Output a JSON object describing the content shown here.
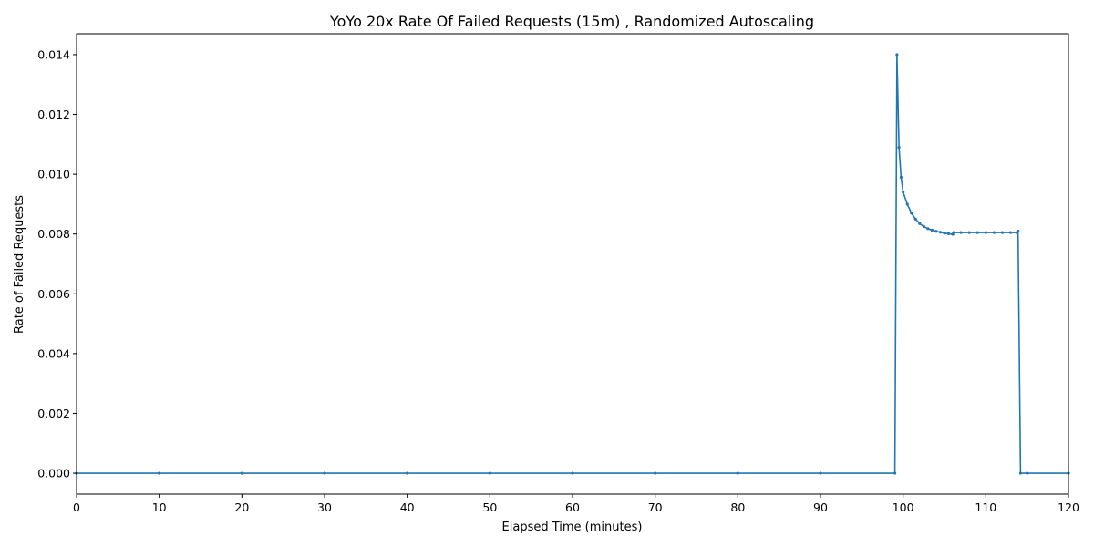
{
  "chart_data": {
    "type": "line",
    "title": "YoYo 20x Rate Of Failed Requests (15m) , Randomized Autoscaling",
    "xlabel": "Elapsed Time (minutes)",
    "ylabel": "Rate of Failed Requests",
    "xlim": [
      0,
      120
    ],
    "ylim": [
      -0.0007,
      0.0147
    ],
    "x_ticks": [
      0,
      10,
      20,
      30,
      40,
      50,
      60,
      70,
      80,
      90,
      100,
      110,
      120
    ],
    "y_ticks": [
      0.0,
      0.002,
      0.004,
      0.006,
      0.008,
      0.01,
      0.012,
      0.014
    ],
    "x_tick_labels": [
      "0",
      "10",
      "20",
      "30",
      "40",
      "50",
      "60",
      "70",
      "80",
      "90",
      "100",
      "110",
      "120"
    ],
    "y_tick_labels": [
      "0.000",
      "0.002",
      "0.004",
      "0.006",
      "0.008",
      "0.010",
      "0.012",
      "0.014"
    ],
    "grid": false,
    "series": [
      {
        "color": "#1f77b4",
        "marker": "dot",
        "x": [
          0,
          10,
          20,
          30,
          40,
          50,
          60,
          70,
          80,
          90,
          99.0,
          99.25,
          99.5,
          99.75,
          100.0,
          100.5,
          101.0,
          101.5,
          102.0,
          102.5,
          103.0,
          103.5,
          104.0,
          104.5,
          105.0,
          105.5,
          106.0,
          106.1,
          107.0,
          108.0,
          109.0,
          110.0,
          111.0,
          112.0,
          113.0,
          113.75,
          113.9,
          114.2,
          115.0,
          120.0
        ],
        "y": [
          0.0,
          0.0,
          0.0,
          0.0,
          0.0,
          0.0,
          0.0,
          0.0,
          0.0,
          0.0,
          0.0,
          0.014,
          0.0109,
          0.0099,
          0.0094,
          0.009,
          0.0087,
          0.0085,
          0.00835,
          0.00825,
          0.00818,
          0.00813,
          0.00809,
          0.00806,
          0.00803,
          0.00801,
          0.00799,
          0.00805,
          0.00805,
          0.00805,
          0.00805,
          0.00805,
          0.00805,
          0.00805,
          0.00805,
          0.00805,
          0.0081,
          0.0,
          0.0,
          0.0
        ]
      }
    ]
  }
}
